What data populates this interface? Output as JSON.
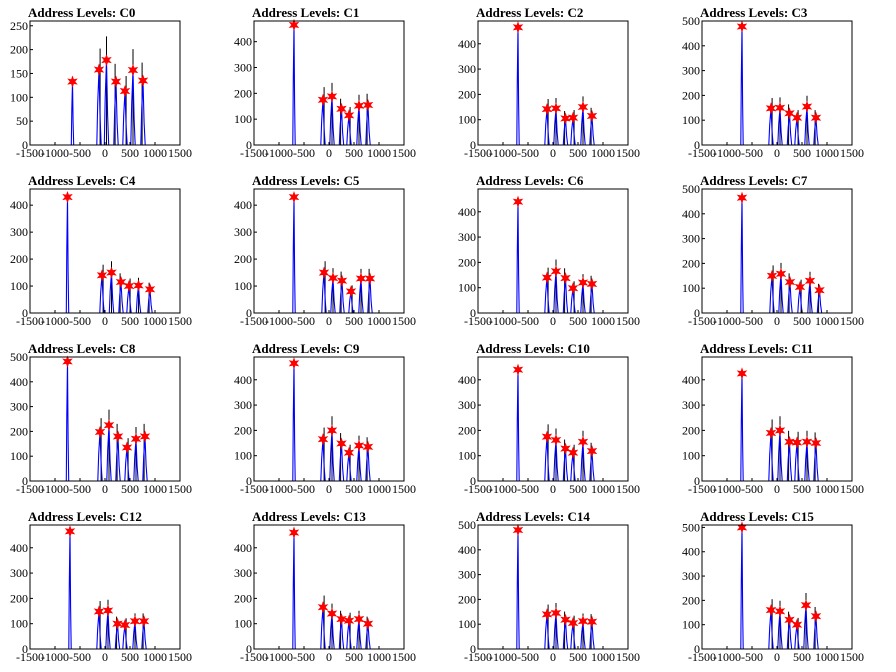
{
  "chart_data": [
    {
      "type": "line",
      "title": "Address Levels: C0",
      "xlim": [
        -1500,
        1500
      ],
      "ylim": [
        0,
        260
      ],
      "x_ticks": [
        "-1500",
        "-1000",
        "-500",
        "0",
        "500",
        "1000",
        "1500"
      ],
      "y_ticks": [
        "0",
        "50",
        "100",
        "150",
        "200",
        "250"
      ],
      "y_tick_values": [
        0,
        50,
        100,
        150,
        200,
        250
      ],
      "peaks": [
        {
          "x": -650,
          "y": 133
        },
        {
          "x": -120,
          "y": 158
        },
        {
          "x": 30,
          "y": 178
        },
        {
          "x": 220,
          "y": 133
        },
        {
          "x": 400,
          "y": 113
        },
        {
          "x": 560,
          "y": 157
        },
        {
          "x": 760,
          "y": 135
        }
      ]
    },
    {
      "type": "line",
      "title": "Address Levels: C1",
      "xlim": [
        -1500,
        1500
      ],
      "ylim": [
        0,
        480
      ],
      "x_ticks": [
        "-1500",
        "-1000",
        "-500",
        "0",
        "500",
        "1000",
        "1500"
      ],
      "y_ticks": [
        "0",
        "100",
        "200",
        "300",
        "400"
      ],
      "y_tick_values": [
        0,
        100,
        200,
        300,
        400
      ],
      "peaks": [
        {
          "x": -700,
          "y": 465
        },
        {
          "x": -120,
          "y": 175
        },
        {
          "x": 60,
          "y": 188
        },
        {
          "x": 250,
          "y": 140
        },
        {
          "x": 400,
          "y": 115
        },
        {
          "x": 600,
          "y": 152
        },
        {
          "x": 780,
          "y": 155
        }
      ]
    },
    {
      "type": "line",
      "title": "Address Levels: C2",
      "xlim": [
        -1500,
        1500
      ],
      "ylim": [
        0,
        490
      ],
      "x_ticks": [
        "-1500",
        "-1000",
        "-500",
        "0",
        "500",
        "1000",
        "1500"
      ],
      "y_ticks": [
        "0",
        "100",
        "200",
        "300",
        "400"
      ],
      "y_tick_values": [
        0,
        100,
        200,
        300,
        400
      ],
      "peaks": [
        {
          "x": -700,
          "y": 465
        },
        {
          "x": -120,
          "y": 142
        },
        {
          "x": 60,
          "y": 145
        },
        {
          "x": 250,
          "y": 105
        },
        {
          "x": 400,
          "y": 108
        },
        {
          "x": 600,
          "y": 150
        },
        {
          "x": 780,
          "y": 115
        }
      ]
    },
    {
      "type": "line",
      "title": "Address Levels: C3",
      "xlim": [
        -1500,
        1500
      ],
      "ylim": [
        0,
        500
      ],
      "x_ticks": [
        "-1500",
        "-1000",
        "-500",
        "0",
        "500",
        "1000",
        "1500"
      ],
      "y_ticks": [
        "0",
        "100",
        "200",
        "300",
        "400",
        "500"
      ],
      "y_tick_values": [
        0,
        100,
        200,
        300,
        400,
        500
      ],
      "peaks": [
        {
          "x": -700,
          "y": 478
        },
        {
          "x": -120,
          "y": 148
        },
        {
          "x": 60,
          "y": 150
        },
        {
          "x": 250,
          "y": 128
        },
        {
          "x": 400,
          "y": 110
        },
        {
          "x": 600,
          "y": 155
        },
        {
          "x": 780,
          "y": 110
        }
      ]
    },
    {
      "type": "line",
      "title": "Address Levels: C4",
      "xlim": [
        -1500,
        1500
      ],
      "ylim": [
        0,
        460
      ],
      "x_ticks": [
        "-1500",
        "-1000",
        "-500",
        "0",
        "500",
        "1000",
        "1500"
      ],
      "y_ticks": [
        "0",
        "100",
        "200",
        "300",
        "400"
      ],
      "y_tick_values": [
        0,
        100,
        200,
        300,
        400
      ],
      "peaks": [
        {
          "x": -750,
          "y": 430
        },
        {
          "x": -60,
          "y": 140
        },
        {
          "x": 130,
          "y": 150
        },
        {
          "x": 320,
          "y": 115
        },
        {
          "x": 480,
          "y": 100
        },
        {
          "x": 670,
          "y": 102
        },
        {
          "x": 900,
          "y": 88
        }
      ]
    },
    {
      "type": "line",
      "title": "Address Levels: C5",
      "xlim": [
        -1500,
        1500
      ],
      "ylim": [
        0,
        460
      ],
      "x_ticks": [
        "-1500",
        "-1000",
        "-500",
        "0",
        "500",
        "1000",
        "1500"
      ],
      "y_ticks": [
        "0",
        "100",
        "200",
        "300",
        "400"
      ],
      "y_tick_values": [
        0,
        100,
        200,
        300,
        400
      ],
      "peaks": [
        {
          "x": -700,
          "y": 430
        },
        {
          "x": -100,
          "y": 150
        },
        {
          "x": 80,
          "y": 130
        },
        {
          "x": 260,
          "y": 120
        },
        {
          "x": 440,
          "y": 80
        },
        {
          "x": 640,
          "y": 128
        },
        {
          "x": 820,
          "y": 128
        }
      ]
    },
    {
      "type": "line",
      "title": "Address Levels: C6",
      "xlim": [
        -1500,
        1500
      ],
      "ylim": [
        0,
        490
      ],
      "x_ticks": [
        "-1500",
        "-1000",
        "-500",
        "0",
        "500",
        "1000",
        "1500"
      ],
      "y_ticks": [
        "0",
        "100",
        "200",
        "300",
        "400"
      ],
      "y_tick_values": [
        0,
        100,
        200,
        300,
        400
      ],
      "peaks": [
        {
          "x": -700,
          "y": 440
        },
        {
          "x": -120,
          "y": 140
        },
        {
          "x": 60,
          "y": 165
        },
        {
          "x": 250,
          "y": 138
        },
        {
          "x": 400,
          "y": 98
        },
        {
          "x": 600,
          "y": 120
        },
        {
          "x": 780,
          "y": 115
        }
      ]
    },
    {
      "type": "line",
      "title": "Address Levels: C7",
      "xlim": [
        -1500,
        1500
      ],
      "ylim": [
        0,
        500
      ],
      "x_ticks": [
        "-1500",
        "-1000",
        "-500",
        "0",
        "500",
        "1000",
        "1500"
      ],
      "y_ticks": [
        "0",
        "100",
        "200",
        "300",
        "400",
        "500"
      ],
      "y_tick_values": [
        0,
        100,
        200,
        300,
        400,
        500
      ],
      "peaks": [
        {
          "x": -700,
          "y": 465
        },
        {
          "x": -100,
          "y": 150
        },
        {
          "x": 80,
          "y": 158
        },
        {
          "x": 260,
          "y": 125
        },
        {
          "x": 460,
          "y": 105
        },
        {
          "x": 660,
          "y": 130
        },
        {
          "x": 850,
          "y": 92
        }
      ]
    },
    {
      "type": "line",
      "title": "Address Levels: C8",
      "xlim": [
        -1500,
        1500
      ],
      "ylim": [
        0,
        500
      ],
      "x_ticks": [
        "-1500",
        "-1000",
        "-500",
        "0",
        "500",
        "1000",
        "1500"
      ],
      "y_ticks": [
        "0",
        "100",
        "200",
        "300",
        "400",
        "500"
      ],
      "y_tick_values": [
        0,
        100,
        200,
        300,
        400,
        500
      ],
      "peaks": [
        {
          "x": -750,
          "y": 482
        },
        {
          "x": -100,
          "y": 198
        },
        {
          "x": 80,
          "y": 225
        },
        {
          "x": 260,
          "y": 180
        },
        {
          "x": 440,
          "y": 135
        },
        {
          "x": 620,
          "y": 170
        },
        {
          "x": 800,
          "y": 180
        }
      ]
    },
    {
      "type": "line",
      "title": "Address Levels: C9",
      "xlim": [
        -1500,
        1500
      ],
      "ylim": [
        0,
        490
      ],
      "x_ticks": [
        "-1500",
        "-1000",
        "-500",
        "0",
        "500",
        "1000",
        "1500"
      ],
      "y_ticks": [
        "0",
        "100",
        "200",
        "300",
        "400"
      ],
      "y_tick_values": [
        0,
        100,
        200,
        300,
        400
      ],
      "peaks": [
        {
          "x": -700,
          "y": 465
        },
        {
          "x": -120,
          "y": 165
        },
        {
          "x": 60,
          "y": 200
        },
        {
          "x": 250,
          "y": 148
        },
        {
          "x": 400,
          "y": 112
        },
        {
          "x": 600,
          "y": 140
        },
        {
          "x": 780,
          "y": 135
        }
      ]
    },
    {
      "type": "line",
      "title": "Address Levels: C10",
      "xlim": [
        -1500,
        1500
      ],
      "ylim": [
        0,
        490
      ],
      "x_ticks": [
        "-1500",
        "-1000",
        "-500",
        "0",
        "500",
        "1000",
        "1500"
      ],
      "y_ticks": [
        "0",
        "100",
        "200",
        "300",
        "400"
      ],
      "y_tick_values": [
        0,
        100,
        200,
        300,
        400
      ],
      "peaks": [
        {
          "x": -700,
          "y": 440
        },
        {
          "x": -120,
          "y": 175
        },
        {
          "x": 60,
          "y": 162
        },
        {
          "x": 250,
          "y": 128
        },
        {
          "x": 400,
          "y": 112
        },
        {
          "x": 600,
          "y": 155
        },
        {
          "x": 780,
          "y": 118
        }
      ]
    },
    {
      "type": "line",
      "title": "Address Levels: C11",
      "xlim": [
        -1500,
        1500
      ],
      "ylim": [
        0,
        490
      ],
      "x_ticks": [
        "-1500",
        "-1000",
        "-500",
        "0",
        "500",
        "1000",
        "1500"
      ],
      "y_ticks": [
        "0",
        "100",
        "200",
        "300",
        "400"
      ],
      "y_tick_values": [
        0,
        100,
        200,
        300,
        400
      ],
      "peaks": [
        {
          "x": -700,
          "y": 425
        },
        {
          "x": -120,
          "y": 190
        },
        {
          "x": 60,
          "y": 200
        },
        {
          "x": 250,
          "y": 155
        },
        {
          "x": 400,
          "y": 152
        },
        {
          "x": 600,
          "y": 155
        },
        {
          "x": 780,
          "y": 150
        }
      ]
    },
    {
      "type": "line",
      "title": "Address Levels: C12",
      "xlim": [
        -1500,
        1500
      ],
      "ylim": [
        0,
        490
      ],
      "x_ticks": [
        "-1500",
        "-1000",
        "-500",
        "0",
        "500",
        "1000",
        "1500"
      ],
      "y_ticks": [
        "0",
        "100",
        "200",
        "300",
        "400"
      ],
      "y_tick_values": [
        0,
        100,
        200,
        300,
        400
      ],
      "peaks": [
        {
          "x": -700,
          "y": 465
        },
        {
          "x": -120,
          "y": 148
        },
        {
          "x": 60,
          "y": 152
        },
        {
          "x": 250,
          "y": 100
        },
        {
          "x": 400,
          "y": 95
        },
        {
          "x": 600,
          "y": 110
        },
        {
          "x": 780,
          "y": 110
        }
      ]
    },
    {
      "type": "line",
      "title": "Address Levels: C13",
      "xlim": [
        -1500,
        1500
      ],
      "ylim": [
        0,
        490
      ],
      "x_ticks": [
        "-1500",
        "-1000",
        "-500",
        "0",
        "500",
        "1000",
        "1500"
      ],
      "y_ticks": [
        "0",
        "100",
        "200",
        "300",
        "400"
      ],
      "y_tick_values": [
        0,
        100,
        200,
        300,
        400
      ],
      "peaks": [
        {
          "x": -700,
          "y": 460
        },
        {
          "x": -120,
          "y": 165
        },
        {
          "x": 60,
          "y": 140
        },
        {
          "x": 250,
          "y": 118
        },
        {
          "x": 400,
          "y": 112
        },
        {
          "x": 600,
          "y": 118
        },
        {
          "x": 780,
          "y": 100
        }
      ]
    },
    {
      "type": "line",
      "title": "Address Levels: C14",
      "xlim": [
        -1500,
        1500
      ],
      "ylim": [
        0,
        500
      ],
      "x_ticks": [
        "-1500",
        "-1000",
        "-500",
        "0",
        "500",
        "1000",
        "1500"
      ],
      "y_ticks": [
        "0",
        "100",
        "200",
        "300",
        "400",
        "500"
      ],
      "y_tick_values": [
        0,
        100,
        200,
        300,
        400,
        500
      ],
      "peaks": [
        {
          "x": -700,
          "y": 480
        },
        {
          "x": -120,
          "y": 140
        },
        {
          "x": 60,
          "y": 145
        },
        {
          "x": 250,
          "y": 118
        },
        {
          "x": 400,
          "y": 105
        },
        {
          "x": 600,
          "y": 112
        },
        {
          "x": 780,
          "y": 110
        }
      ]
    },
    {
      "type": "line",
      "title": "Address Levels: C15",
      "xlim": [
        -1500,
        1500
      ],
      "ylim": [
        0,
        510
      ],
      "x_ticks": [
        "-1500",
        "-1000",
        "-500",
        "0",
        "500",
        "1000",
        "1500"
      ],
      "y_ticks": [
        "0",
        "100",
        "200",
        "300",
        "400",
        "500"
      ],
      "y_tick_values": [
        0,
        100,
        200,
        300,
        400,
        500
      ],
      "peaks": [
        {
          "x": -700,
          "y": 500
        },
        {
          "x": -120,
          "y": 160
        },
        {
          "x": 60,
          "y": 155
        },
        {
          "x": 250,
          "y": 120
        },
        {
          "x": 400,
          "y": 100
        },
        {
          "x": 580,
          "y": 180
        },
        {
          "x": 780,
          "y": 135
        }
      ]
    }
  ],
  "colors": {
    "trace": "#0000ff",
    "secondary_trace": "#000000",
    "marker": "#ff0000",
    "axis": "#000000"
  }
}
